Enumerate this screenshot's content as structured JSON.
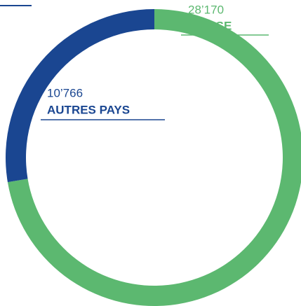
{
  "chart_data": {
    "type": "donut",
    "categories": [
      "SUISSE",
      "AUTRES PAYS"
    ],
    "values": [
      28170,
      10766
    ],
    "value_labels": [
      "28’170",
      "10’766"
    ],
    "colors": [
      "#5cb870",
      "#1a4691"
    ]
  }
}
